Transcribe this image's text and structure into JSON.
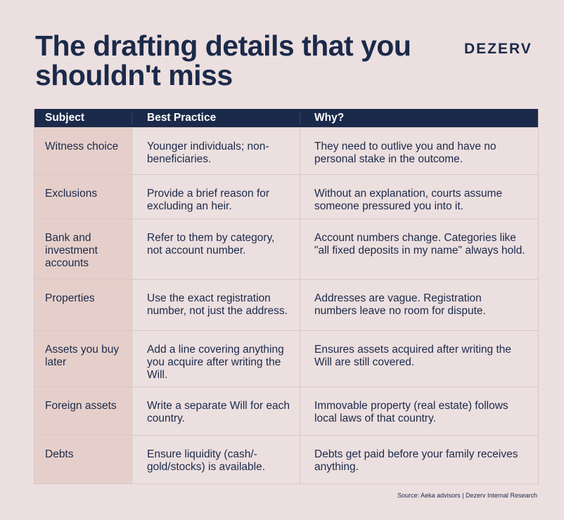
{
  "header": {
    "title": "The drafting details that you shouldn't miss",
    "logo": "DEZERV"
  },
  "table": {
    "columns": [
      "Subject",
      "Best Practice",
      "Why?"
    ],
    "rows": [
      [
        "Witness choice",
        "Younger individuals; non-beneficiaries.",
        "They need to outlive you and have no personal stake in the outcome."
      ],
      [
        "Exclusions",
        "Provide a brief reason for excluding an heir.",
        "Without an explanation, courts assume someone pressured you into it."
      ],
      [
        "Bank and investment accounts",
        "Refer to them by category, not account number.",
        "Account numbers change. Categories like \"all fixed deposits in my name\" always hold."
      ],
      [
        "Properties",
        "Use the exact registration number, not just the address.",
        "Addresses are vague. Registration numbers leave no room for dispute."
      ],
      [
        "Assets you buy later",
        "Add a line covering anything you acquire after writing the Will.",
        "Ensures assets acquired after writing the Will are still covered."
      ],
      [
        "Foreign assets",
        "Write a separate Will for each country.",
        "Immovable property (real estate) follows local laws of that country."
      ],
      [
        "Debts",
        "Ensure liquidity (cash/-gold/stocks) is available.",
        "Debts get paid before your family receives anything."
      ]
    ]
  },
  "footer": {
    "source": "Source: Aeka advisors | Dezerv Internal Research"
  }
}
